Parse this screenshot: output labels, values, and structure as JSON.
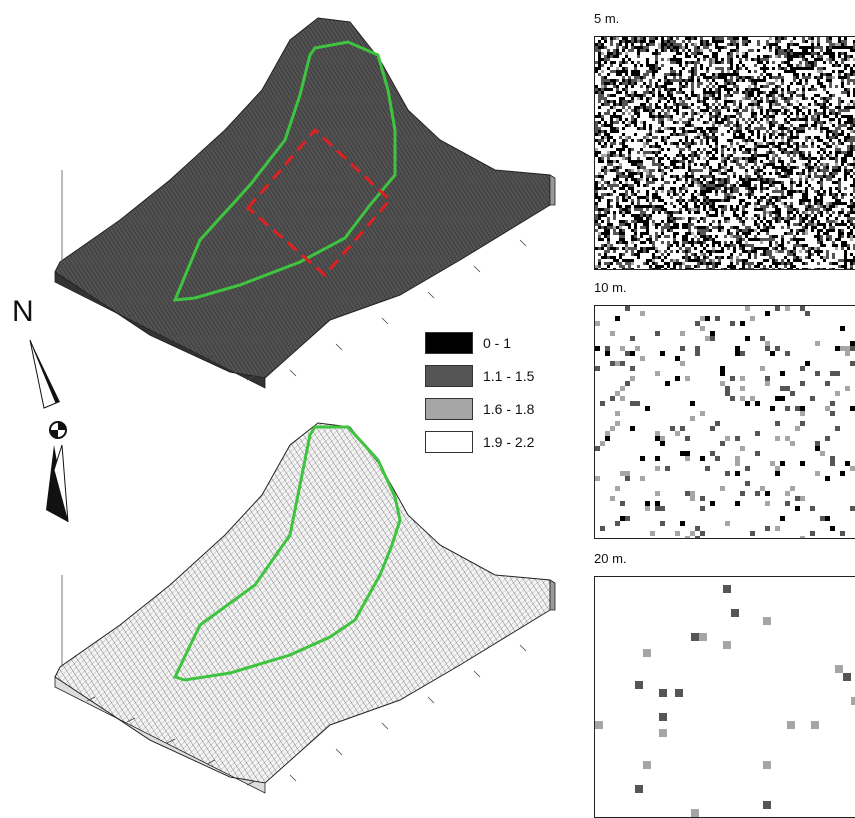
{
  "panels": [
    {
      "label": "5 m.",
      "density": 0.52,
      "dark": 0.28
    },
    {
      "label": "10 m.",
      "density": 0.12,
      "dark": 0.03
    },
    {
      "label": "20 m.",
      "density": 0.03,
      "dark": 0.004
    }
  ],
  "legend": [
    {
      "label": "0 - 1",
      "color": "#000000"
    },
    {
      "label": "1.1 - 1.5",
      "color": "#555555"
    },
    {
      "label": "1.6 - 1.8",
      "color": "#a6a6a6"
    },
    {
      "label": "1.9 - 2.2",
      "color": "#ffffff"
    }
  ],
  "compass": {
    "label": "N"
  },
  "colors": {
    "outline": "#3ec43e",
    "box": "#e02020",
    "mesh_dark": "#333333",
    "mesh_light": "#f2f2f2"
  }
}
